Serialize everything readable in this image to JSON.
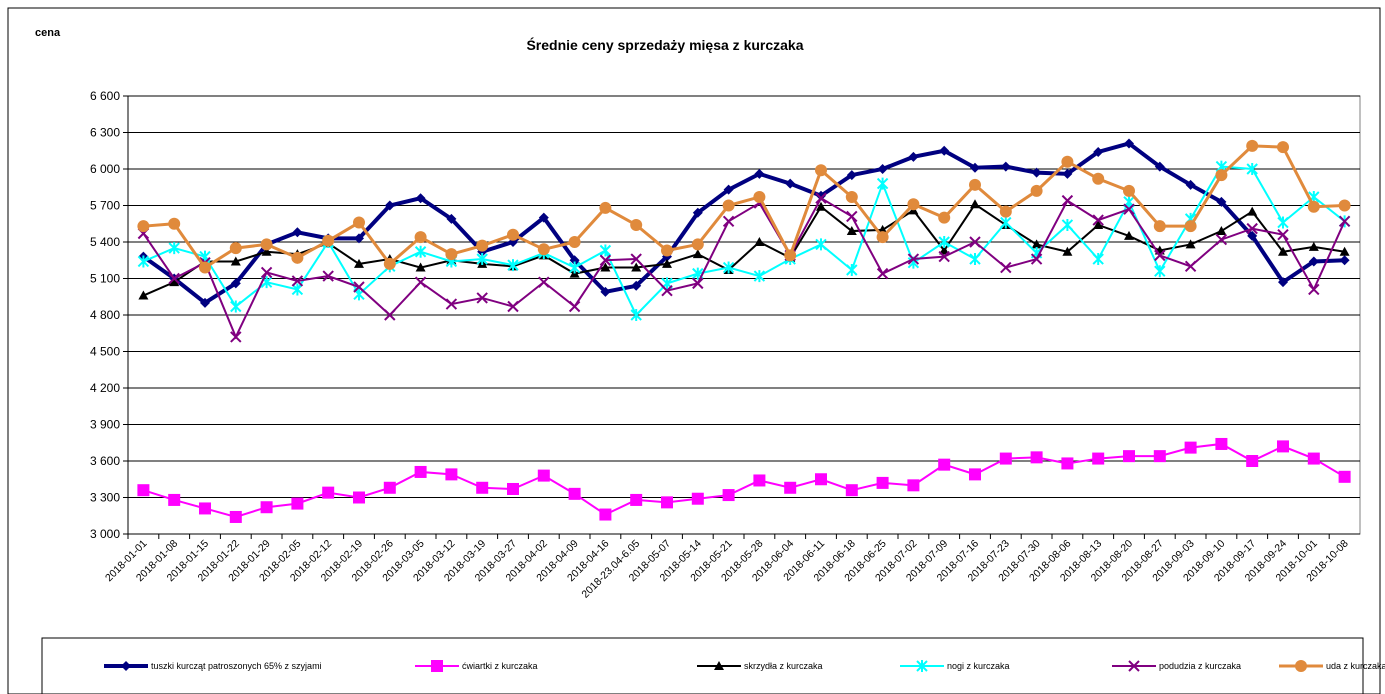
{
  "chart_data": {
    "type": "line",
    "title": "Średnie ceny sprzedaży mięsa z kurczaka",
    "y_label": "cena",
    "categories": [
      "2018-01-01",
      "2018-01-08",
      "2018-01-15",
      "2018-01-22",
      "2018-01-29",
      "2018-02-05",
      "2018-02-12",
      "2018-02-19",
      "2018-02-26",
      "2018-03-05",
      "2018-03-12",
      "2018-03-19",
      "2018-03-27",
      "2018-04-02",
      "2018-04-09",
      "2018-04-16",
      "2018-23.04-6.05",
      "2018-05-07",
      "2018-05-14",
      "2018-05-21",
      "2018-05-28",
      "2018-06-04",
      "2018-06-11",
      "2018-06-18",
      "2018-06-25",
      "2018-07-02",
      "2018-07-09",
      "2018-07-16",
      "2018-07-23",
      "2018-07-30",
      "2018-08-06",
      "2018-08-13",
      "2018-08-20",
      "2018-08-27",
      "2018-09-03",
      "2018-09-10",
      "2018-09-17",
      "2018-09-24",
      "2018-10-01",
      "2018-10-08"
    ],
    "series": [
      {
        "name": "tuszki kurcząt patroszonych 65% z szyjami",
        "color": "#000080",
        "marker": "diamond",
        "width": 4,
        "values": [
          5280,
          5100,
          4900,
          5060,
          5380,
          5480,
          5430,
          5430,
          5700,
          5760,
          5590,
          5320,
          5400,
          5600,
          5250,
          4990,
          5040,
          5280,
          5640,
          5830,
          5960,
          5880,
          5780,
          5950,
          6000,
          6100,
          6150,
          6010,
          6020,
          5970,
          5960,
          6140,
          6210,
          6020,
          5870,
          5730,
          5450,
          5070,
          5240,
          5250
        ]
      },
      {
        "name": "ćwiartki z kurczaka",
        "color": "#ff00ff",
        "marker": "square",
        "width": 2,
        "values": [
          3360,
          3280,
          3210,
          3140,
          3220,
          3250,
          3340,
          3300,
          3380,
          3510,
          3490,
          3380,
          3370,
          3480,
          3330,
          3160,
          3280,
          3260,
          3290,
          3320,
          3440,
          3380,
          3450,
          3360,
          3420,
          3400,
          3570,
          3490,
          3620,
          3630,
          3580,
          3620,
          3640,
          3640,
          3710,
          3740,
          3600,
          3720,
          3620,
          3470
        ]
      },
      {
        "name": "skrzydła z kurczaka",
        "color": "#000000",
        "marker": "triangle",
        "width": 2,
        "values": [
          4960,
          5070,
          5240,
          5240,
          5320,
          5300,
          5390,
          5220,
          5260,
          5190,
          5250,
          5220,
          5200,
          5290,
          5140,
          5190,
          5190,
          5220,
          5300,
          5170,
          5400,
          5270,
          5690,
          5490,
          5500,
          5660,
          5330,
          5710,
          5540,
          5380,
          5320,
          5540,
          5450,
          5330,
          5380,
          5490,
          5650,
          5320,
          5360,
          5320
        ]
      },
      {
        "name": "nogi z kurczaka",
        "color": "#00ffff",
        "marker": "star",
        "width": 2,
        "values": [
          5240,
          5350,
          5280,
          4870,
          5070,
          5010,
          5400,
          4970,
          5200,
          5320,
          5240,
          5260,
          5210,
          5310,
          5190,
          5330,
          4800,
          5060,
          5140,
          5190,
          5120,
          5260,
          5380,
          5170,
          5880,
          5230,
          5400,
          5260,
          5560,
          5310,
          5540,
          5260,
          5730,
          5160,
          5590,
          6020,
          6000,
          5560,
          5770,
          5570
        ]
      },
      {
        "name": "podudzia z kurczaka",
        "color": "#800080",
        "marker": "x",
        "width": 2,
        "values": [
          5470,
          5100,
          5230,
          4620,
          5150,
          5080,
          5120,
          5030,
          4800,
          5070,
          4890,
          4940,
          4870,
          5070,
          4870,
          5250,
          5260,
          5000,
          5060,
          5570,
          5720,
          5290,
          5760,
          5610,
          5140,
          5260,
          5280,
          5400,
          5190,
          5260,
          5740,
          5580,
          5670,
          5290,
          5200,
          5420,
          5510,
          5460,
          5010,
          5570
        ]
      },
      {
        "name": "uda z kurczaka",
        "color": "#e08a3c",
        "marker": "circle",
        "width": 3,
        "values": [
          5530,
          5550,
          5190,
          5350,
          5380,
          5270,
          5410,
          5560,
          5220,
          5440,
          5300,
          5370,
          5460,
          5340,
          5400,
          5680,
          5540,
          5330,
          5380,
          5700,
          5770,
          5290,
          5990,
          5770,
          5440,
          5710,
          5600,
          5870,
          5650,
          5820,
          6060,
          5920,
          5820,
          5530,
          5530,
          5950,
          6190,
          6180,
          5690,
          5700
        ]
      }
    ],
    "ylim": [
      3000,
      6600
    ],
    "yticks": [
      {
        "value": 3000,
        "label": "3 000"
      },
      {
        "value": 3300,
        "label": "3 300"
      },
      {
        "value": 3600,
        "label": "3 600"
      },
      {
        "value": 3900,
        "label": "3 900"
      },
      {
        "value": 4200,
        "label": "4 200"
      },
      {
        "value": 4500,
        "label": "4 500"
      },
      {
        "value": 4800,
        "label": "4 800"
      },
      {
        "value": 5100,
        "label": "5 100"
      },
      {
        "value": 5400,
        "label": "5 400"
      },
      {
        "value": 5700,
        "label": "5 700"
      },
      {
        "value": 6000,
        "label": "6 000"
      },
      {
        "value": 6300,
        "label": "6 300"
      },
      {
        "value": 6600,
        "label": "6 600"
      }
    ],
    "grid": true,
    "legend": "bottom"
  }
}
